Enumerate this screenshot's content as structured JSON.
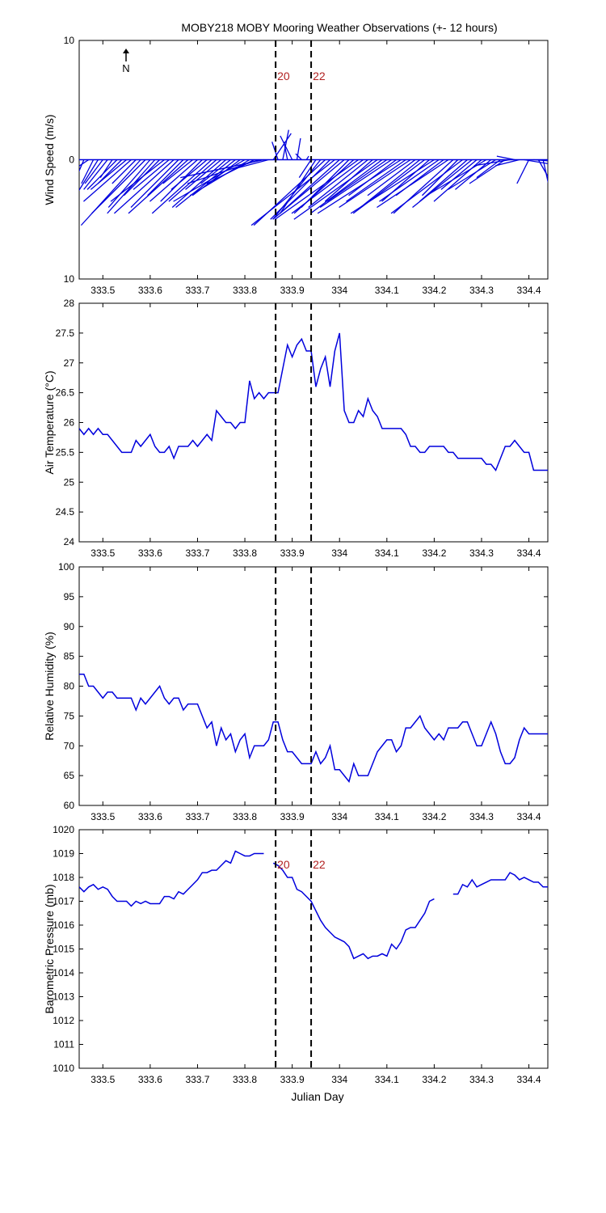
{
  "title": "MOBY218 MOBY Mooring Weather Observations (+- 12 hours)",
  "xlabel": "Julian Day",
  "colors": {
    "line": "#0000dd",
    "marker_text": "#b22222",
    "axis": "#000000"
  },
  "markers": {
    "x": [
      333.865,
      333.94
    ],
    "labels": [
      "20",
      "22"
    ]
  },
  "chart_data": [
    {
      "type": "quiver",
      "ylabel": "Wind Speed (m/s)",
      "xlim": [
        333.45,
        334.44
      ],
      "ylim": [
        -10,
        10
      ],
      "yticks": [
        -10,
        0,
        10
      ],
      "yticklabels": [
        "10",
        "0",
        "10"
      ],
      "xticks": [
        333.5,
        333.6,
        333.7,
        333.8,
        333.9,
        334.0,
        334.1,
        334.2,
        334.3,
        334.4
      ],
      "xticklabels": [
        "333.5",
        "333.6",
        "333.7",
        "333.8",
        "333.9",
        "334",
        "334.1",
        "334.2",
        "334.3",
        "334.4"
      ],
      "north_label": "N",
      "show_marker_labels": true,
      "x": [
        333.45,
        333.46,
        333.47,
        333.48,
        333.49,
        333.5,
        333.51,
        333.52,
        333.53,
        333.54,
        333.55,
        333.56,
        333.57,
        333.58,
        333.59,
        333.6,
        333.61,
        333.62,
        333.63,
        333.64,
        333.65,
        333.66,
        333.67,
        333.68,
        333.69,
        333.7,
        333.71,
        333.72,
        333.73,
        333.74,
        333.75,
        333.76,
        333.77,
        333.78,
        333.79,
        333.8,
        333.81,
        333.82,
        333.83,
        333.84,
        333.85,
        333.86,
        333.87,
        333.88,
        333.89,
        333.9,
        333.91,
        333.92,
        333.93,
        333.94,
        333.95,
        333.96,
        333.97,
        333.98,
        333.99,
        334.0,
        334.01,
        334.02,
        334.03,
        334.04,
        334.05,
        334.06,
        334.07,
        334.08,
        334.09,
        334.1,
        334.11,
        334.12,
        334.13,
        334.14,
        334.15,
        334.16,
        334.17,
        334.18,
        334.19,
        334.2,
        334.21,
        334.22,
        334.23,
        334.24,
        334.25,
        334.26,
        334.27,
        334.28,
        334.29,
        334.3,
        334.31,
        334.32,
        334.33,
        334.34,
        334.35,
        334.36,
        334.37,
        334.38,
        334.39,
        334.4,
        334.41,
        334.42,
        334.43
      ],
      "u": [
        -2,
        -1.5,
        -3,
        -1,
        -2.5,
        -1.5,
        -2,
        -1,
        -2.5,
        -2,
        -3,
        -4,
        -2,
        -5,
        -4.5,
        -3.5,
        -4,
        -3,
        -4.5,
        -3,
        -5,
        -4,
        -3,
        -5,
        -2.5,
        -4,
        -3.5,
        -3,
        -5,
        -4,
        -3,
        -4.5,
        -2.5,
        -5,
        -4,
        -6,
        -5,
        -4,
        -6,
        -7,
        -3,
        1.5,
        -0.5,
        0.5,
        -0.3,
        -1,
        0.3,
        -0.5,
        0.2,
        -1,
        -3,
        -4,
        -6,
        -5,
        -7,
        -5,
        -6,
        -4,
        -5,
        -7,
        -6,
        -5,
        -4,
        -7,
        -6,
        -5,
        -6,
        -4,
        -7,
        -5,
        -6,
        -4,
        -5,
        -6,
        -4,
        -7,
        -5,
        -4,
        -6,
        -5,
        -3,
        -6,
        -4,
        -5,
        -3,
        -4,
        -5,
        -3,
        -4,
        -2,
        -3,
        -3,
        -1.5,
        -2,
        3,
        -1,
        2.5,
        2,
        1
      ],
      "v": [
        -2.5,
        -3.5,
        -2,
        -2,
        -4,
        -2,
        -2.5,
        -1.5,
        -2.5,
        -2,
        -2.5,
        -3.5,
        -2,
        -5.5,
        -4.5,
        -4,
        -4.5,
        -3,
        -3.5,
        -2.5,
        -4.5,
        -4,
        -3,
        -4.5,
        -2,
        -3.5,
        -3.5,
        -2.5,
        -4.5,
        -3.5,
        -2.5,
        -4,
        -2,
        -4,
        -3,
        -3.5,
        -3,
        -2,
        -2,
        -1.5,
        -0.8,
        2.2,
        1.5,
        2.5,
        1.5,
        2,
        1.8,
        0.5,
        0.3,
        -1.5,
        -4.5,
        -5,
        -5.5,
        -5,
        -5.5,
        -4.5,
        -5,
        -4,
        -4.5,
        -5,
        -4.5,
        -4,
        -3.5,
        -5,
        -4.5,
        -3.5,
        -4,
        -3,
        -4.5,
        -3.5,
        -4,
        -3,
        -4,
        -4.5,
        -3.5,
        -4.5,
        -3.5,
        -3,
        -4,
        -4.5,
        -3,
        -4.5,
        -3.5,
        -4,
        -2.5,
        -3.5,
        -3,
        -2.5,
        -2.5,
        -1.5,
        -2,
        -0.5,
        0.3,
        -0.5,
        -0.5,
        -2,
        -0.2,
        -3.5,
        -4.5
      ]
    },
    {
      "type": "line",
      "ylabel": "Air Temperature (°C)",
      "xlim": [
        333.45,
        334.44
      ],
      "ylim": [
        24,
        28
      ],
      "yticks": [
        24,
        24.5,
        25,
        25.5,
        26,
        26.5,
        27,
        27.5,
        28
      ],
      "yticklabels": [
        "24",
        "24.5",
        "25",
        "25.5",
        "26",
        "26.5",
        "27",
        "27.5",
        "28"
      ],
      "xticks": [
        333.5,
        333.6,
        333.7,
        333.8,
        333.9,
        334.0,
        334.1,
        334.2,
        334.3,
        334.4
      ],
      "xticklabels": [
        "333.5",
        "333.6",
        "333.7",
        "333.8",
        "333.9",
        "334",
        "334.1",
        "334.2",
        "334.3",
        "334.4"
      ],
      "show_marker_labels": false,
      "series": [
        {
          "x": [
            333.45,
            333.46,
            333.47,
            333.48,
            333.49,
            333.5,
            333.51,
            333.52,
            333.53,
            333.54,
            333.55,
            333.56,
            333.57,
            333.58,
            333.59,
            333.6,
            333.61,
            333.62,
            333.63,
            333.64,
            333.65,
            333.66,
            333.67,
            333.68,
            333.69,
            333.7,
            333.71,
            333.72,
            333.73,
            333.74,
            333.75,
            333.76,
            333.77,
            333.78,
            333.79,
            333.8,
            333.81,
            333.82,
            333.83,
            333.84,
            333.85,
            333.86,
            333.87,
            333.88,
            333.89,
            333.9,
            333.91,
            333.92,
            333.93,
            333.94,
            333.95,
            333.96,
            333.97,
            333.98,
            333.99,
            334.0,
            334.01,
            334.02,
            334.03,
            334.04,
            334.05,
            334.06,
            334.07,
            334.08,
            334.09,
            334.1,
            334.11,
            334.12,
            334.13,
            334.14,
            334.15,
            334.16,
            334.17,
            334.18,
            334.19,
            334.2,
            334.21,
            334.22,
            334.23,
            334.24,
            334.25,
            334.26,
            334.27,
            334.28,
            334.29,
            334.3,
            334.31,
            334.32,
            334.33,
            334.34,
            334.35,
            334.36,
            334.37,
            334.38,
            334.39,
            334.4,
            334.41,
            334.42,
            334.43,
            334.44
          ],
          "values": [
            25.9,
            25.8,
            25.9,
            25.8,
            25.9,
            25.8,
            25.8,
            25.7,
            25.6,
            25.5,
            25.5,
            25.5,
            25.7,
            25.6,
            25.7,
            25.8,
            25.6,
            25.5,
            25.5,
            25.6,
            25.4,
            25.6,
            25.6,
            25.6,
            25.7,
            25.6,
            25.7,
            25.8,
            25.7,
            26.2,
            26.1,
            26.0,
            26.0,
            25.9,
            26.0,
            26.0,
            26.7,
            26.4,
            26.5,
            26.4,
            26.5,
            26.5,
            26.5,
            26.9,
            27.3,
            27.1,
            27.3,
            27.4,
            27.2,
            27.2,
            26.6,
            26.9,
            27.1,
            26.6,
            27.2,
            27.5,
            26.2,
            26.0,
            26.0,
            26.2,
            26.1,
            26.4,
            26.2,
            26.1,
            25.9,
            25.9,
            25.9,
            25.9,
            25.9,
            25.8,
            25.6,
            25.6,
            25.5,
            25.5,
            25.6,
            25.6,
            25.6,
            25.6,
            25.5,
            25.5,
            25.4,
            25.4,
            25.4,
            25.4,
            25.4,
            25.4,
            25.3,
            25.3,
            25.2,
            25.4,
            25.6,
            25.6,
            25.7,
            25.6,
            25.5,
            25.5,
            25.2,
            25.2,
            25.2,
            25.2
          ]
        }
      ]
    },
    {
      "type": "line",
      "ylabel": "Relative Humidity (%)",
      "xlim": [
        333.45,
        334.44
      ],
      "ylim": [
        60,
        100
      ],
      "yticks": [
        60,
        65,
        70,
        75,
        80,
        85,
        90,
        95,
        100
      ],
      "yticklabels": [
        "60",
        "65",
        "70",
        "75",
        "80",
        "85",
        "90",
        "95",
        "100"
      ],
      "xticks": [
        333.5,
        333.6,
        333.7,
        333.8,
        333.9,
        334.0,
        334.1,
        334.2,
        334.3,
        334.4
      ],
      "xticklabels": [
        "333.5",
        "333.6",
        "333.7",
        "333.8",
        "333.9",
        "334",
        "334.1",
        "334.2",
        "334.3",
        "334.4"
      ],
      "show_marker_labels": false,
      "series": [
        {
          "x": [
            333.45,
            333.46,
            333.47,
            333.48,
            333.49,
            333.5,
            333.51,
            333.52,
            333.53,
            333.54,
            333.55,
            333.56,
            333.57,
            333.58,
            333.59,
            333.6,
            333.61,
            333.62,
            333.63,
            333.64,
            333.65,
            333.66,
            333.67,
            333.68,
            333.69,
            333.7,
            333.71,
            333.72,
            333.73,
            333.74,
            333.75,
            333.76,
            333.77,
            333.78,
            333.79,
            333.8,
            333.81,
            333.82,
            333.83,
            333.84,
            333.85,
            333.86,
            333.87,
            333.88,
            333.89,
            333.9,
            333.91,
            333.92,
            333.93,
            333.94,
            333.95,
            333.96,
            333.97,
            333.98,
            333.99,
            334.0,
            334.01,
            334.02,
            334.03,
            334.04,
            334.05,
            334.06,
            334.07,
            334.08,
            334.09,
            334.1,
            334.11,
            334.12,
            334.13,
            334.14,
            334.15,
            334.16,
            334.17,
            334.18,
            334.19,
            334.2,
            334.21,
            334.22,
            334.23,
            334.24,
            334.25,
            334.26,
            334.27,
            334.28,
            334.29,
            334.3,
            334.31,
            334.32,
            334.33,
            334.34,
            334.35,
            334.36,
            334.37,
            334.38,
            334.39,
            334.4,
            334.41,
            334.42,
            334.43,
            334.44
          ],
          "values": [
            82,
            82,
            80,
            80,
            79,
            78,
            79,
            79,
            78,
            78,
            78,
            78,
            76,
            78,
            77,
            78,
            79,
            80,
            78,
            77,
            78,
            78,
            76,
            77,
            77,
            77,
            75,
            73,
            74,
            70,
            73,
            71,
            72,
            69,
            71,
            72,
            68,
            70,
            70,
            70,
            71,
            74,
            74,
            71,
            69,
            69,
            68,
            67,
            67,
            67,
            69,
            67,
            68,
            70,
            66,
            66,
            65,
            64,
            67,
            65,
            65,
            65,
            67,
            69,
            70,
            71,
            71,
            69,
            70,
            73,
            73,
            74,
            75,
            73,
            72,
            71,
            72,
            71,
            73,
            73,
            73,
            74,
            74,
            72,
            70,
            70,
            72,
            74,
            72,
            69,
            67,
            67,
            68,
            71,
            73,
            72,
            72,
            72,
            72,
            72
          ]
        }
      ]
    },
    {
      "type": "line",
      "ylabel": "Barometric Pressure (mb)",
      "xlim": [
        333.45,
        334.44
      ],
      "ylim": [
        1010,
        1020
      ],
      "yticks": [
        1010,
        1011,
        1012,
        1013,
        1014,
        1015,
        1016,
        1017,
        1018,
        1019,
        1020
      ],
      "yticklabels": [
        "1010",
        "1011",
        "1012",
        "1013",
        "1014",
        "1015",
        "1016",
        "1017",
        "1018",
        "1019",
        "1020"
      ],
      "xticks": [
        333.5,
        333.6,
        333.7,
        333.8,
        333.9,
        334.0,
        334.1,
        334.2,
        334.3,
        334.4
      ],
      "xticklabels": [
        "333.5",
        "333.6",
        "333.7",
        "333.8",
        "333.9",
        "334",
        "334.1",
        "334.2",
        "334.3",
        "334.4"
      ],
      "show_marker_labels": true,
      "show_xlabel": true,
      "series": [
        {
          "x": [
            333.45,
            333.46,
            333.47,
            333.48,
            333.49,
            333.5,
            333.51,
            333.52,
            333.53,
            333.54,
            333.55,
            333.56,
            333.57,
            333.58,
            333.59,
            333.6,
            333.61,
            333.62,
            333.63,
            333.64,
            333.65,
            333.66,
            333.67,
            333.68,
            333.69,
            333.7,
            333.71,
            333.72,
            333.73,
            333.74,
            333.75,
            333.76,
            333.77,
            333.78,
            333.79,
            333.8,
            333.81,
            333.82,
            333.83,
            333.84,
            null,
            333.86,
            333.87,
            333.88,
            333.89,
            333.9,
            333.91,
            333.92,
            333.93,
            333.94,
            333.95,
            333.96,
            333.97,
            333.98,
            333.99,
            334.0,
            334.01,
            334.02,
            334.03,
            334.04,
            334.05,
            334.06,
            334.07,
            334.08,
            334.09,
            334.1,
            334.11,
            334.12,
            334.13,
            334.14,
            334.15,
            334.16,
            334.17,
            334.18,
            334.19,
            334.2,
            334.21,
            334.22,
            null,
            334.24,
            334.25,
            334.26,
            334.27,
            334.28,
            334.29,
            334.3,
            334.31,
            334.32,
            334.33,
            334.34,
            334.35,
            334.36,
            334.37,
            334.38,
            334.39,
            334.4,
            334.41,
            334.42,
            334.43,
            334.44
          ],
          "values": [
            1017.6,
            1017.4,
            1017.6,
            1017.7,
            1017.5,
            1017.6,
            1017.5,
            1017.2,
            1017.0,
            1017.0,
            1017.0,
            1016.8,
            1017.0,
            1016.9,
            1017.0,
            1016.9,
            1016.9,
            1016.9,
            1017.2,
            1017.2,
            1017.1,
            1017.4,
            1017.3,
            1017.5,
            1017.7,
            1017.9,
            1018.2,
            1018.2,
            1018.3,
            1018.3,
            1018.5,
            1018.7,
            1018.6,
            1019.1,
            1019.0,
            1018.9,
            1018.9,
            1019.0,
            1019.0,
            1019.0,
            null,
            1018.6,
            1018.5,
            1018.3,
            1018.0,
            1018.0,
            1017.5,
            1017.4,
            1017.2,
            1017.0,
            1016.6,
            1016.2,
            1015.9,
            1015.7,
            1015.5,
            1015.4,
            1015.3,
            1015.1,
            1014.6,
            1014.7,
            1014.8,
            1014.6,
            1014.7,
            1014.7,
            1014.8,
            1014.7,
            1015.2,
            1015.0,
            1015.3,
            1015.8,
            1015.9,
            1015.9,
            1016.2,
            1016.5,
            1017.0,
            1017.1,
            null,
            null,
            null,
            1017.3,
            1017.3,
            1017.7,
            1017.6,
            1017.9,
            1017.6,
            1017.7,
            1017.8,
            1017.9,
            1017.9,
            1017.9,
            1017.9,
            1018.2,
            1018.1,
            1017.9,
            1018.0,
            1017.9,
            1017.8,
            1017.8,
            1017.6,
            1017.6
          ]
        }
      ]
    }
  ]
}
